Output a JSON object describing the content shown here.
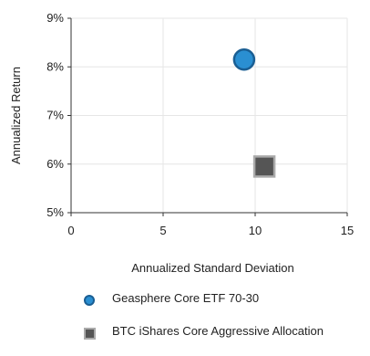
{
  "chart_data": {
    "type": "scatter",
    "title": "",
    "xlabel": "Annualized Standard Deviation",
    "ylabel": "Annualized Return",
    "xlim": [
      0,
      15
    ],
    "ylim": [
      5,
      9
    ],
    "x_ticks": [
      "0",
      "5",
      "10",
      "15"
    ],
    "y_ticks": [
      "5%",
      "6%",
      "7%",
      "8%",
      "9%"
    ],
    "grid": true,
    "legend_position": "bottom",
    "series": [
      {
        "name": "Geasphere Core ETF 70-30",
        "marker": "circle",
        "color": "#2a8fd2",
        "edge_color": "#1a5e93",
        "points": [
          {
            "x": 9.4,
            "y": 8.15
          }
        ]
      },
      {
        "name": "BTC iShares Core Aggressive Allocation",
        "marker": "square",
        "color": "#555555",
        "edge_color": "#aaaaaa",
        "points": [
          {
            "x": 10.5,
            "y": 5.95
          }
        ]
      }
    ]
  }
}
